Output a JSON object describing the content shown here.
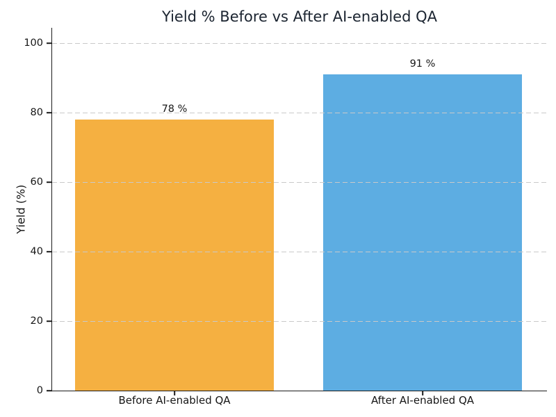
{
  "title": "Yield % Before vs After AI-enabled QA",
  "axes": {
    "ylabel": "Yield (%)",
    "xlabel": ""
  },
  "chart_data": {
    "type": "bar",
    "title": "Yield % Before vs After AI-enabled QA",
    "categories": [
      "Before AI-enabled QA",
      "After AI-enabled QA"
    ],
    "values": [
      78,
      91
    ],
    "bar_labels": [
      "78 %",
      "91 %"
    ],
    "bar_colors": [
      "#f5b041",
      "#5dade2"
    ],
    "xlabel": "",
    "ylabel": "Yield (%)",
    "ylim": [
      0,
      104.5
    ],
    "yticks": [
      0,
      20,
      40,
      60,
      80,
      100
    ],
    "yticklabels": [
      "0",
      "20",
      "40",
      "60",
      "80",
      "100"
    ],
    "grid": "horizontal dashed gridlines drawn above bars",
    "gridline_color": "#c9c9c9",
    "legend": "none",
    "background": "#ffffff"
  }
}
